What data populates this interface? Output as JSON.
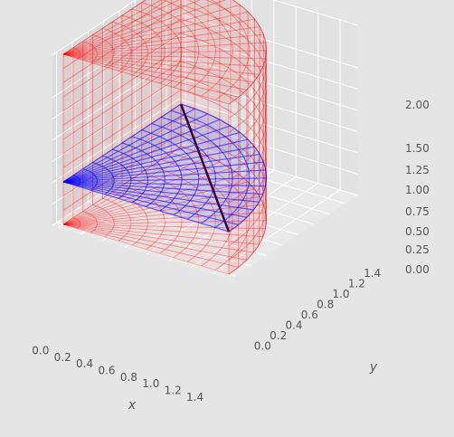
{
  "chart_data": {
    "type": "surface3d",
    "title": "",
    "xlabel": "x",
    "ylabel": "y",
    "zlabel": "",
    "xlim": [
      0,
      1.5
    ],
    "ylim": [
      0,
      1.5
    ],
    "zlim": [
      0,
      2.0
    ],
    "x_ticks": [
      "0.0",
      "0.2",
      "0.4",
      "0.6",
      "0.8",
      "1.0",
      "1.2",
      "1.4"
    ],
    "y_ticks": [
      "0.0",
      "0.2",
      "0.4",
      "0.6",
      "0.8",
      "1.0",
      "1.2",
      "1.4"
    ],
    "z_ticks": [
      "0.00",
      "0.25",
      "0.50",
      "0.75",
      "1.00",
      "1.25",
      "1.50",
      "2.00"
    ],
    "grid": true,
    "background": "#e5e5e5",
    "series": [
      {
        "surface": "curved wall r = 1.5, angle 0 to 90 degrees, z from 0 to 2",
        "color": "#ff0000",
        "radius": 1.5,
        "z_range": [
          0,
          2
        ]
      },
      {
        "surface": "flat wall x = 0, y from 0 to 1.5",
        "color": "#ff0000"
      },
      {
        "surface": "quarter disk r = 1.5 at z = 2 (top)",
        "color": "#ff0000",
        "z": 2
      },
      {
        "surface": "quarter disk r = 1.5 at z = 0 (bottom)",
        "color": "#ff0000",
        "z": 0
      },
      {
        "surface": "quarter disk r = 1.5 at z = 0.5",
        "color": "#0000ff",
        "z": 0.5
      }
    ],
    "highlight_line": {
      "from": [
        1.5,
        0,
        0.5
      ],
      "to": [
        0,
        1.5,
        0.5
      ],
      "color": "#3a0033"
    }
  }
}
